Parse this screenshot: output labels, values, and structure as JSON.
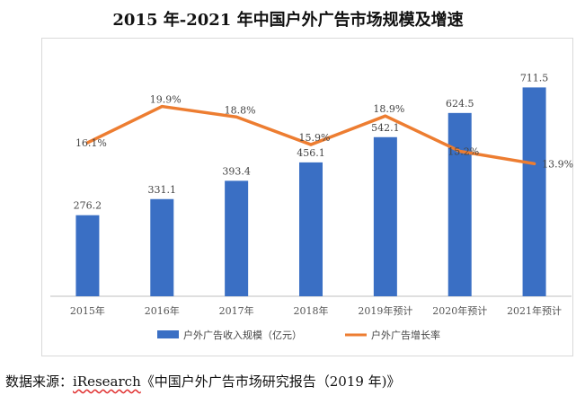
{
  "title": "2015 年-2021 年中国户外广告市场规模及增速",
  "source": {
    "prefix": "数据来源：",
    "brand": "iResearch",
    "suffix": "《中国户外广告市场研究报告（2019 年)》"
  },
  "chart_data": {
    "type": "bar",
    "categories": [
      "2015年",
      "2016年",
      "2017年",
      "2018年",
      "2019年预计",
      "2020年预计",
      "2021年预计"
    ],
    "series": [
      {
        "name": "户外广告收入规模（亿元）",
        "type": "bar",
        "values": [
          276.2,
          331.1,
          393.4,
          456.1,
          542.1,
          624.5,
          711.5
        ],
        "labels": [
          "276.2",
          "331.1",
          "393.4",
          "456.1",
          "542.1",
          "624.5",
          "711.5"
        ],
        "color": "#3a6fc4"
      },
      {
        "name": "户外广告增长率",
        "type": "line",
        "values": [
          16.1,
          19.9,
          18.8,
          15.9,
          18.9,
          15.2,
          13.9
        ],
        "labels": [
          "16.1%",
          "19.9%",
          "18.8%",
          "15.9%",
          "18.9%",
          "15.2%",
          "13.9%"
        ],
        "color": "#ed7d31"
      }
    ],
    "ylim": [
      0,
      780
    ],
    "y2lim": [
      0,
      24
    ],
    "grid": false,
    "legend": "bottom"
  }
}
